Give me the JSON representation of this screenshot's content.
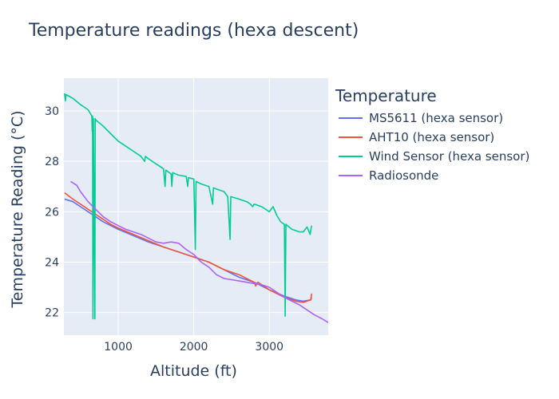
{
  "chart_data": {
    "type": "line",
    "title": "Temperature readings (hexa descent)",
    "xlabel": "Altitude (ft)",
    "ylabel": "Temperature  Reading (°C)",
    "xlim": [
      280,
      3780
    ],
    "ylim": [
      21.1,
      31.3
    ],
    "xticks": [
      1000,
      2000,
      3000
    ],
    "yticks": [
      22,
      24,
      26,
      28,
      30
    ],
    "grid": true,
    "legend_title": "Temperature",
    "legend_position": "right",
    "series": [
      {
        "name": "MS5611 (hexa sensor)",
        "color": "#636efa",
        "points": [
          [
            290,
            26.5
          ],
          [
            400,
            26.4
          ],
          [
            500,
            26.2
          ],
          [
            600,
            26.0
          ],
          [
            700,
            25.8
          ],
          [
            800,
            25.6
          ],
          [
            900,
            25.45
          ],
          [
            1000,
            25.3
          ],
          [
            1200,
            25.05
          ],
          [
            1400,
            24.8
          ],
          [
            1600,
            24.6
          ],
          [
            1800,
            24.4
          ],
          [
            2000,
            24.2
          ],
          [
            2200,
            24.0
          ],
          [
            2400,
            23.7
          ],
          [
            2600,
            23.4
          ],
          [
            2800,
            23.2
          ],
          [
            3000,
            22.9
          ],
          [
            3200,
            22.65
          ],
          [
            3350,
            22.5
          ],
          [
            3450,
            22.45
          ],
          [
            3550,
            22.5
          ],
          [
            3560,
            22.6
          ]
        ]
      },
      {
        "name": "AHT10 (hexa sensor)",
        "color": "#ef553b",
        "points": [
          [
            290,
            26.75
          ],
          [
            400,
            26.5
          ],
          [
            500,
            26.3
          ],
          [
            600,
            26.1
          ],
          [
            700,
            25.9
          ],
          [
            800,
            25.7
          ],
          [
            900,
            25.5
          ],
          [
            1000,
            25.35
          ],
          [
            1200,
            25.1
          ],
          [
            1400,
            24.85
          ],
          [
            1600,
            24.6
          ],
          [
            1800,
            24.4
          ],
          [
            2000,
            24.2
          ],
          [
            2200,
            24.0
          ],
          [
            2400,
            23.7
          ],
          [
            2600,
            23.5
          ],
          [
            2800,
            23.2
          ],
          [
            2820,
            23.05
          ],
          [
            2850,
            23.2
          ],
          [
            3000,
            22.9
          ],
          [
            3200,
            22.6
          ],
          [
            3350,
            22.45
          ],
          [
            3450,
            22.4
          ],
          [
            3550,
            22.5
          ],
          [
            3560,
            22.75
          ]
        ]
      },
      {
        "name": "Wind Sensor (hexa sensor)",
        "color": "#00cc96",
        "points": [
          [
            290,
            30.7
          ],
          [
            300,
            30.4
          ],
          [
            310,
            30.65
          ],
          [
            400,
            30.5
          ],
          [
            500,
            30.25
          ],
          [
            600,
            30.05
          ],
          [
            650,
            29.8
          ],
          [
            655,
            29.2
          ],
          [
            660,
            29.8
          ],
          [
            665,
            21.75
          ],
          [
            670,
            29.7
          ],
          [
            690,
            21.75
          ],
          [
            695,
            29.7
          ],
          [
            700,
            29.65
          ],
          [
            800,
            29.4
          ],
          [
            900,
            29.1
          ],
          [
            1000,
            28.8
          ],
          [
            1100,
            28.6
          ],
          [
            1200,
            28.4
          ],
          [
            1300,
            28.2
          ],
          [
            1350,
            28.0
          ],
          [
            1360,
            28.2
          ],
          [
            1400,
            28.1
          ],
          [
            1500,
            27.9
          ],
          [
            1600,
            27.7
          ],
          [
            1620,
            27.0
          ],
          [
            1630,
            27.65
          ],
          [
            1700,
            27.5
          ],
          [
            1710,
            27.0
          ],
          [
            1720,
            27.55
          ],
          [
            1800,
            27.45
          ],
          [
            1900,
            27.4
          ],
          [
            1920,
            27.0
          ],
          [
            1930,
            27.35
          ],
          [
            2000,
            27.3
          ],
          [
            2020,
            24.5
          ],
          [
            2030,
            27.2
          ],
          [
            2100,
            27.1
          ],
          [
            2200,
            27.0
          ],
          [
            2250,
            26.3
          ],
          [
            2260,
            26.95
          ],
          [
            2300,
            26.9
          ],
          [
            2400,
            26.8
          ],
          [
            2450,
            26.6
          ],
          [
            2480,
            24.9
          ],
          [
            2490,
            26.6
          ],
          [
            2600,
            26.5
          ],
          [
            2700,
            26.4
          ],
          [
            2750,
            26.3
          ],
          [
            2780,
            26.2
          ],
          [
            2800,
            26.3
          ],
          [
            2900,
            26.2
          ],
          [
            3000,
            26.0
          ],
          [
            3050,
            26.2
          ],
          [
            3100,
            25.85
          ],
          [
            3150,
            25.6
          ],
          [
            3200,
            25.5
          ],
          [
            3210,
            21.85
          ],
          [
            3220,
            25.5
          ],
          [
            3300,
            25.3
          ],
          [
            3400,
            25.2
          ],
          [
            3450,
            25.2
          ],
          [
            3500,
            25.4
          ],
          [
            3540,
            25.1
          ],
          [
            3560,
            25.45
          ]
        ]
      },
      {
        "name": "Radiosonde",
        "color": "#ab63fa",
        "points": [
          [
            370,
            27.2
          ],
          [
            450,
            27.05
          ],
          [
            500,
            26.8
          ],
          [
            600,
            26.4
          ],
          [
            700,
            26.1
          ],
          [
            800,
            25.8
          ],
          [
            900,
            25.6
          ],
          [
            1000,
            25.45
          ],
          [
            1100,
            25.3
          ],
          [
            1300,
            25.1
          ],
          [
            1500,
            24.8
          ],
          [
            1600,
            24.75
          ],
          [
            1700,
            24.8
          ],
          [
            1800,
            24.75
          ],
          [
            1900,
            24.5
          ],
          [
            2000,
            24.3
          ],
          [
            2100,
            24.0
          ],
          [
            2200,
            23.8
          ],
          [
            2300,
            23.5
          ],
          [
            2400,
            23.35
          ],
          [
            2500,
            23.3
          ],
          [
            2600,
            23.25
          ],
          [
            2700,
            23.2
          ],
          [
            2800,
            23.15
          ],
          [
            2900,
            23.1
          ],
          [
            3000,
            23.0
          ],
          [
            3100,
            22.8
          ],
          [
            3200,
            22.6
          ],
          [
            3300,
            22.45
          ],
          [
            3400,
            22.3
          ],
          [
            3500,
            22.1
          ],
          [
            3600,
            21.9
          ],
          [
            3700,
            21.75
          ],
          [
            3780,
            21.6
          ]
        ]
      }
    ]
  }
}
